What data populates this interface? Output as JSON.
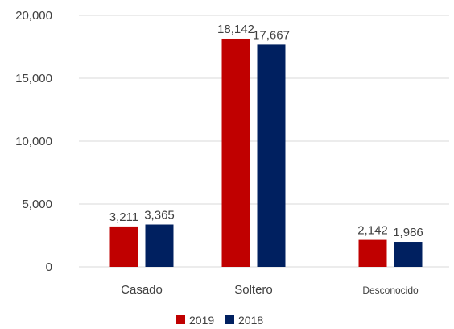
{
  "chart_data": {
    "type": "bar",
    "categories": [
      "Casado",
      "Soltero",
      "Desconocido"
    ],
    "series": [
      {
        "name": "2019",
        "values": [
          3211,
          18142,
          2142
        ],
        "labels": [
          "3,211",
          "18,142",
          "2,142"
        ],
        "color": "#C00000"
      },
      {
        "name": "2018",
        "values": [
          3365,
          17667,
          1986
        ],
        "labels": [
          "3,365",
          "17,667",
          "1,986"
        ],
        "color": "#002060"
      }
    ],
    "ylim": [
      0,
      20000
    ],
    "yticks": [
      {
        "value": 0,
        "label": "0"
      },
      {
        "value": 5000,
        "label": "5,000"
      },
      {
        "value": 10000,
        "label": "10,000"
      },
      {
        "value": 15000,
        "label": "15,000"
      },
      {
        "value": 20000,
        "label": "20,000"
      }
    ],
    "grid": true,
    "legend": "bottom-center",
    "title": "",
    "xlabel": "",
    "ylabel": ""
  }
}
